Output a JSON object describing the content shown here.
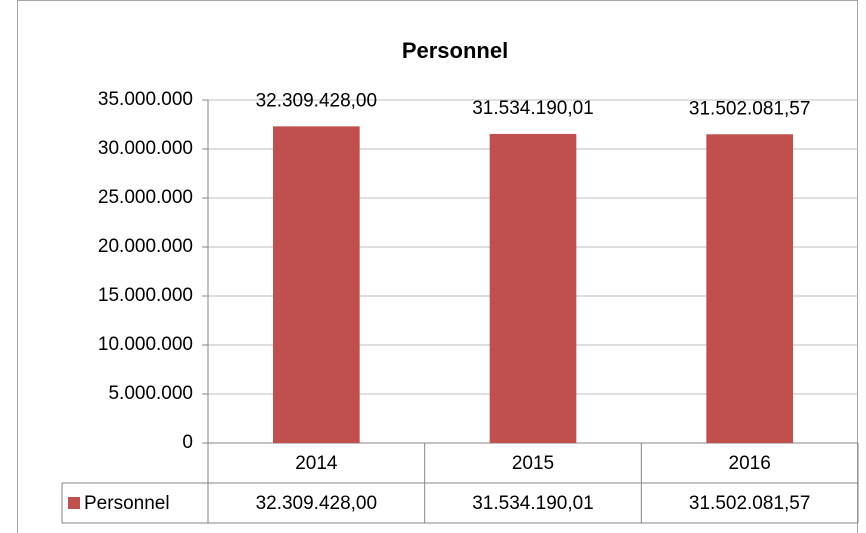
{
  "chart_data": {
    "type": "bar",
    "title": "Personnel",
    "categories": [
      "2014",
      "2015",
      "2016"
    ],
    "series": [
      {
        "name": "Personnel",
        "color": "#c0504d",
        "values": [
          32309428,
          31534190.01,
          31502081.57
        ],
        "value_labels": [
          "32.309.428,00",
          "31.534.190,01",
          "31.502.081,57"
        ]
      }
    ],
    "ylim": [
      0,
      35000000
    ],
    "yticks": [
      0,
      {
        "value": 5000000,
        "label": "5.000.000"
      },
      {
        "value": 10000000,
        "label": "10.000.000"
      },
      {
        "value": 15000000,
        "label": "15.000.000"
      },
      {
        "value": 20000000,
        "label": "20.000.000"
      },
      {
        "value": 25000000,
        "label": "25.000.000"
      },
      {
        "value": 30000000,
        "label": "30.000.000"
      },
      {
        "value": 35000000,
        "label": "35.000.000"
      }
    ],
    "grid": true
  }
}
